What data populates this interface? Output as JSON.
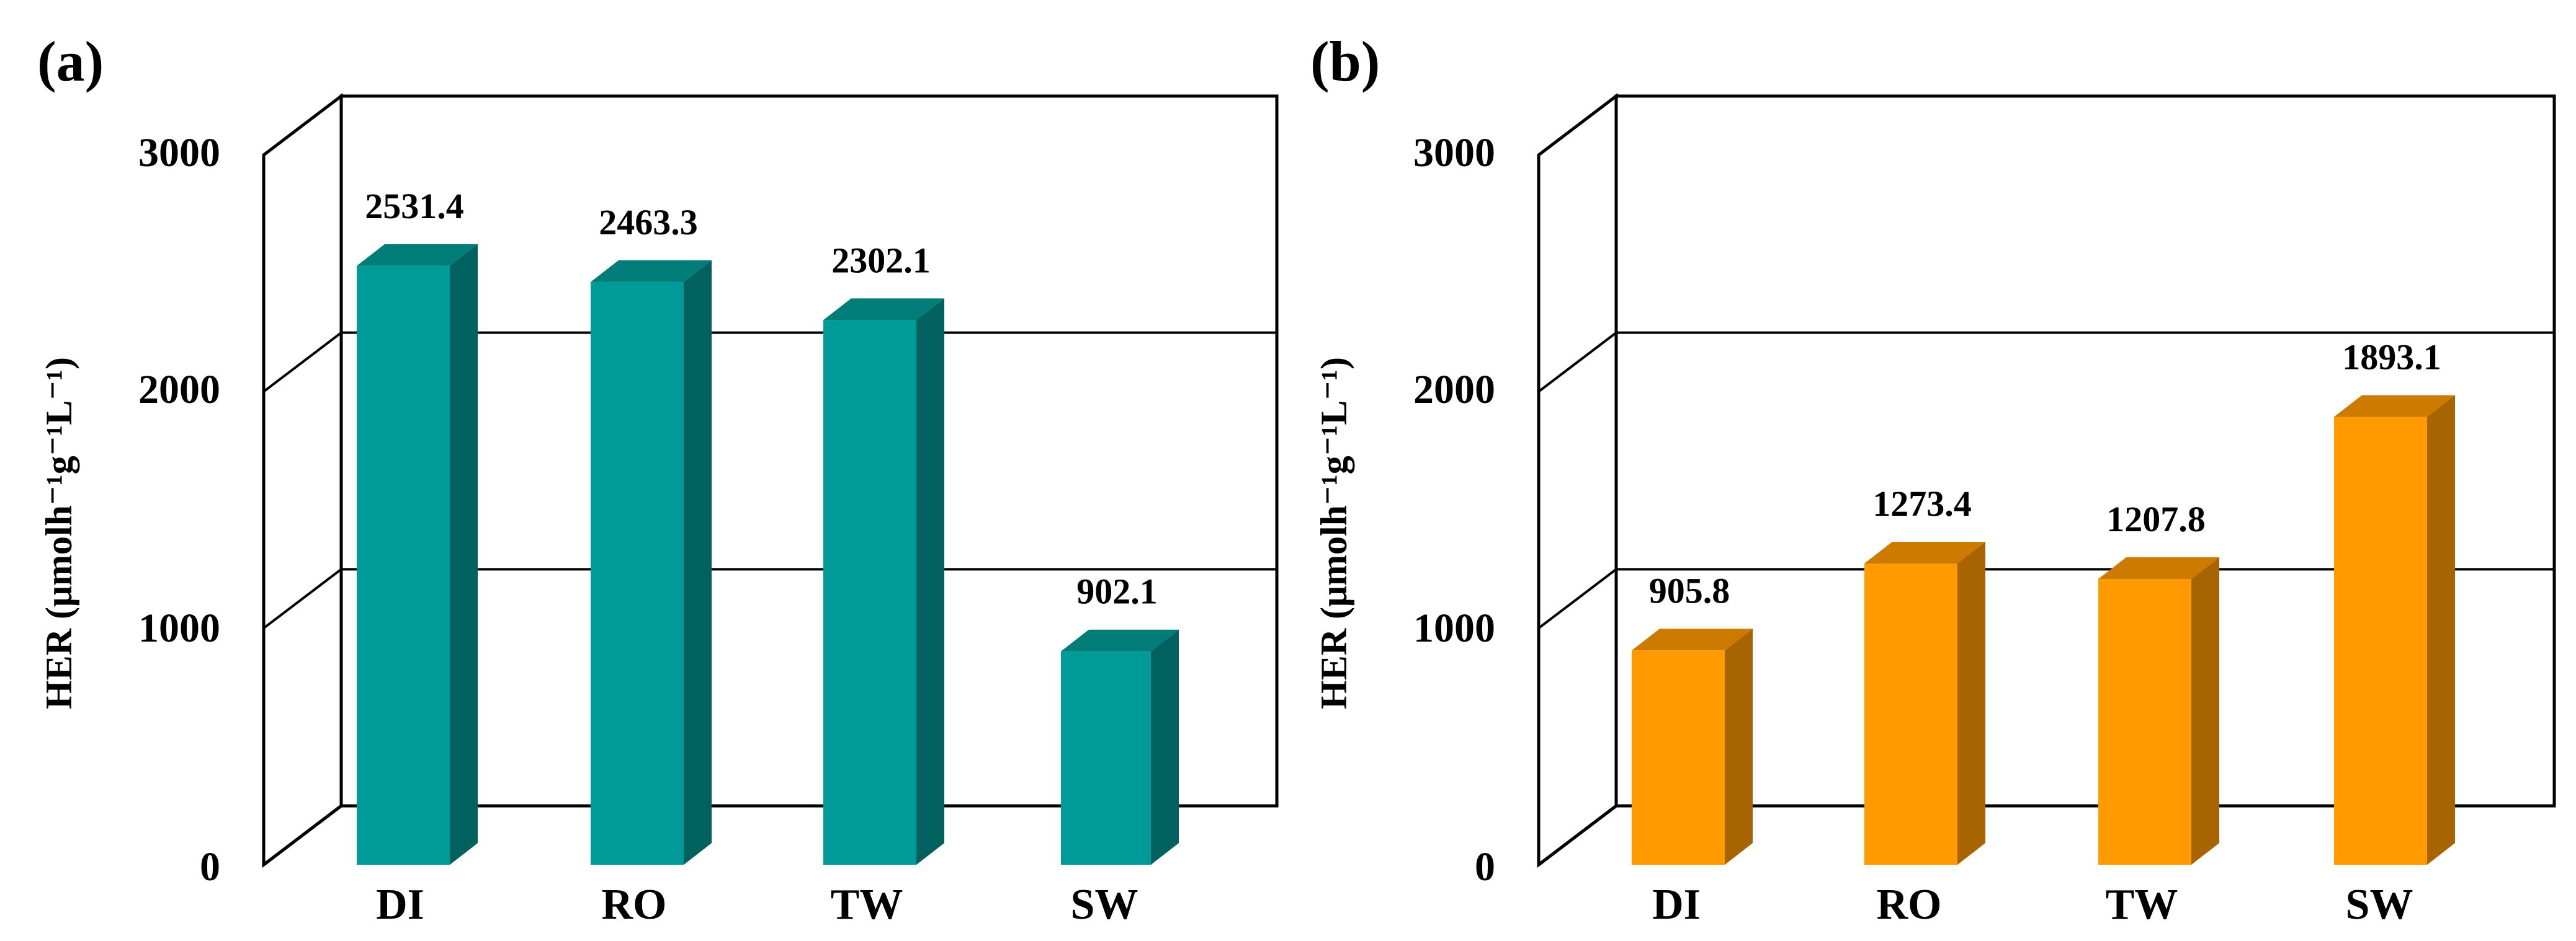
{
  "chart_data": [
    {
      "type": "bar",
      "panel_label": "(a)",
      "categories": [
        "DI",
        "RO",
        "TW",
        "SW"
      ],
      "values": [
        2531.4,
        2463.3,
        2302.1,
        902.1
      ],
      "value_labels": [
        "2531.4",
        "2463.3",
        "2302.1",
        "902.1"
      ],
      "yticks": [
        "0",
        "1000",
        "2000",
        "3000"
      ],
      "ylim": [
        0,
        3000
      ],
      "ylabel": "HER (μmolh⁻¹g⁻¹L⁻¹)",
      "xlabel": "",
      "grid": true,
      "color": "#009B98",
      "side_color": "#00615F",
      "top_color": "#007C79"
    },
    {
      "type": "bar",
      "panel_label": "(b)",
      "categories": [
        "DI",
        "RO",
        "TW",
        "SW"
      ],
      "values": [
        905.8,
        1273.4,
        1207.8,
        1893.1
      ],
      "value_labels": [
        "905.8",
        "1273.4",
        "1207.8",
        "1893.1"
      ],
      "yticks": [
        "0",
        "1000",
        "2000",
        "3000"
      ],
      "ylim": [
        0,
        3000
      ],
      "ylabel": "HER (μmolh⁻¹g⁻¹L⁻¹)",
      "xlabel": "",
      "grid": true,
      "color": "#FF9A00",
      "side_color": "#A86400",
      "top_color": "#CC7A00"
    }
  ]
}
